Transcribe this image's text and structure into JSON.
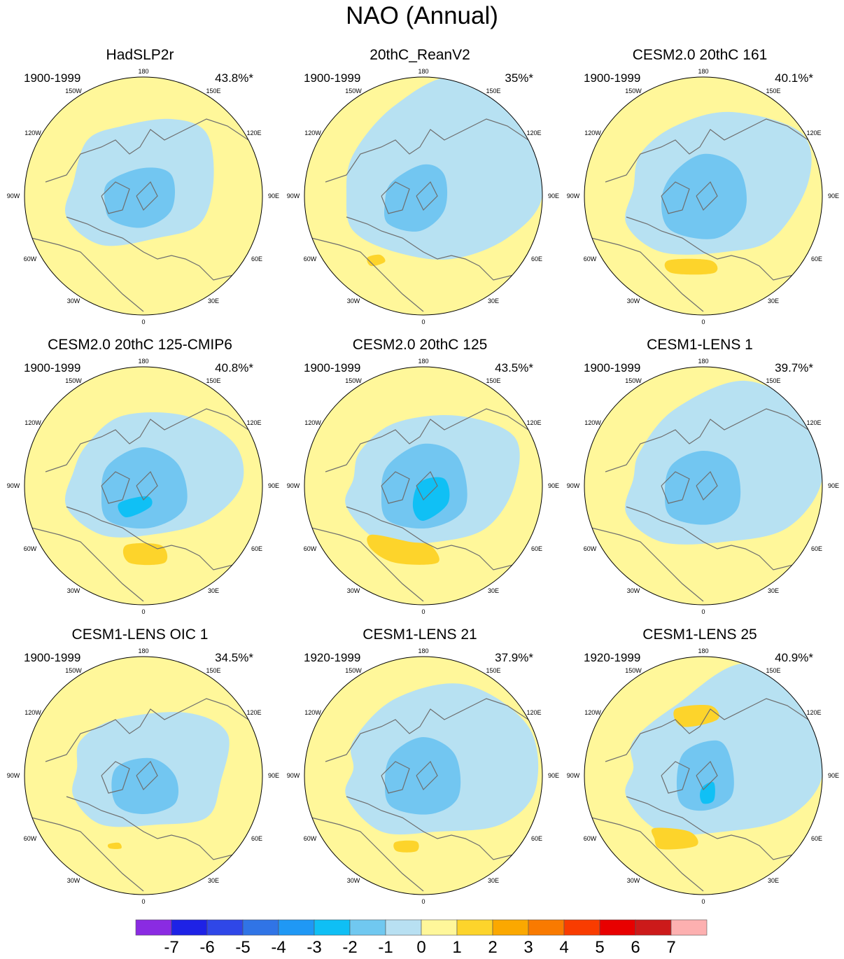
{
  "title": "NAO (Annual)",
  "colors": {
    "blue1": "#b7e1f2",
    "blue2": "#72c6f1",
    "blue3": "#10c0f5",
    "yellow1": "#fff79a",
    "yellow2": "#fdd42b",
    "coast": "#6e6e6e"
  },
  "lon_labels": [
    "180",
    "150E",
    "120E",
    "90E",
    "60E",
    "30E",
    "0",
    "30W",
    "60W",
    "90W",
    "120W",
    "150W"
  ],
  "panels": [
    {
      "title": "HadSLP2r",
      "years": "1900-1999",
      "pct": "43.8%*"
    },
    {
      "title": "20thC_ReanV2",
      "years": "1900-1999",
      "pct": "35%*"
    },
    {
      "title": "CESM2.0 20thC 161",
      "years": "1900-1999",
      "pct": "40.1%*"
    },
    {
      "title": "CESM2.0 20thC 125-CMIP6",
      "years": "1900-1999",
      "pct": "40.8%*"
    },
    {
      "title": "CESM2.0 20thC 125",
      "years": "1900-1999",
      "pct": "43.5%*"
    },
    {
      "title": "CESM1-LENS 1",
      "years": "1900-1999",
      "pct": "39.7%*"
    },
    {
      "title": "CESM1-LENS OIC 1",
      "years": "1900-1999",
      "pct": "34.5%*"
    },
    {
      "title": "CESM1-LENS 21",
      "years": "1920-1999",
      "pct": "37.9%*"
    },
    {
      "title": "CESM1-LENS 25",
      "years": "1920-1999",
      "pct": "40.9%*"
    }
  ],
  "colorbar": {
    "labels": [
      "-7",
      "-6",
      "-5",
      "-4",
      "-3",
      "-2",
      "-1",
      "0",
      "1",
      "2",
      "3",
      "4",
      "5",
      "6",
      "7"
    ],
    "colors": [
      "#8a2be2",
      "#1e22e6",
      "#2f47e8",
      "#3074e6",
      "#1f98f5",
      "#0fbff5",
      "#70c8f0",
      "#b8e0f2",
      "#fff79a",
      "#fdd42b",
      "#fba800",
      "#f97a00",
      "#f93c00",
      "#e80000",
      "#cc1a1a",
      "#fdb0b0"
    ]
  }
}
